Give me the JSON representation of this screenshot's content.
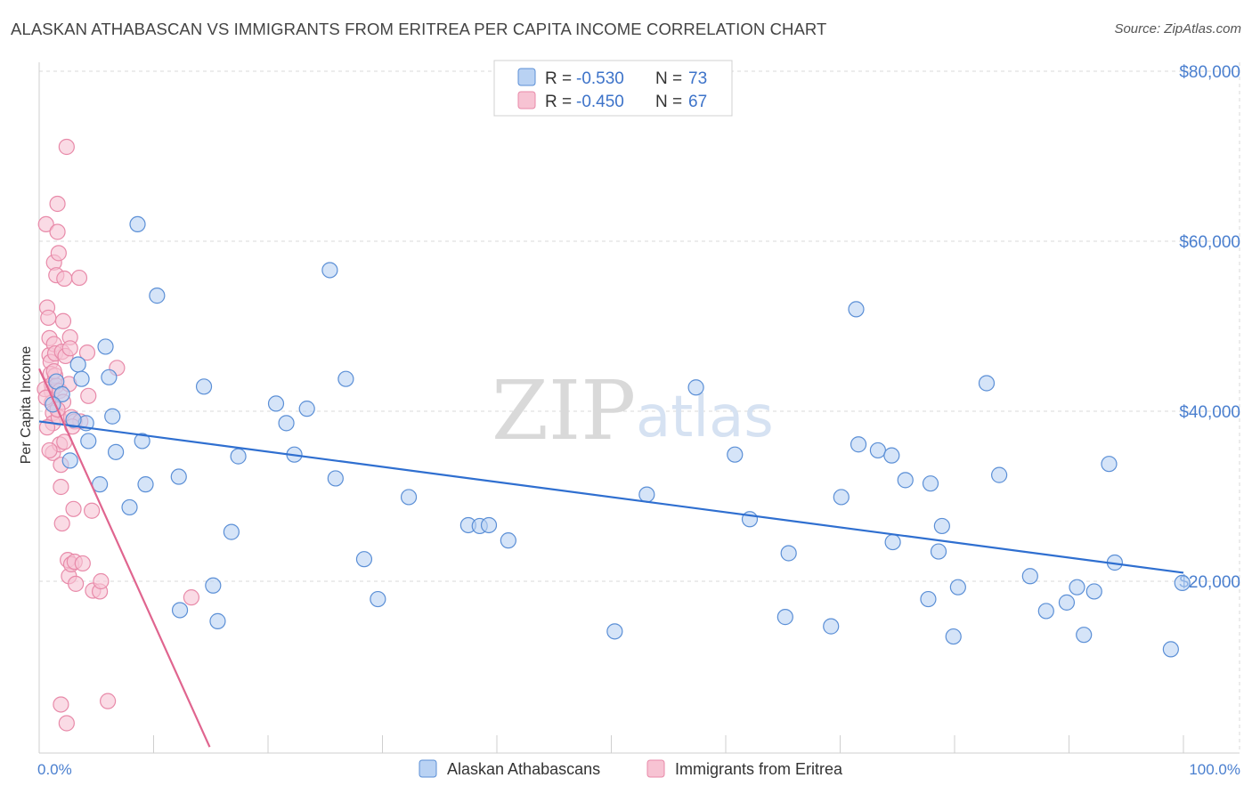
{
  "title": "ALASKAN ATHABASCAN VS IMMIGRANTS FROM ERITREA PER CAPITA INCOME CORRELATION CHART",
  "source": "Source: ZipAtlas.com",
  "watermark": {
    "zip": "ZIP",
    "atlas": "atlas"
  },
  "colors": {
    "blue_fill": "#b9d2f3",
    "blue_stroke": "#5b8fd6",
    "blue_line": "#2f6fd0",
    "pink_fill": "#f7c3d3",
    "pink_stroke": "#e88aa9",
    "pink_line": "#e0658f",
    "grid": "#d8d8d8",
    "tick_text": "#4a7fcf"
  },
  "legend": {
    "rows": [
      {
        "r_label": "R =",
        "r_value": "-0.530",
        "n_label": "N =",
        "n_value": "73",
        "series": "blue"
      },
      {
        "r_label": "R =",
        "r_value": "-0.450",
        "n_label": "N =",
        "n_value": "67",
        "series": "pink"
      }
    ]
  },
  "bottom_legend": [
    {
      "label": "Alaskan Athabascans",
      "series": "blue"
    },
    {
      "label": "Immigrants from Eritrea",
      "series": "pink"
    }
  ],
  "chart_data": {
    "type": "scatter",
    "title": "ALASKAN ATHABASCAN VS IMMIGRANTS FROM ERITREA PER CAPITA INCOME CORRELATION CHART",
    "xlabel": "",
    "ylabel": "Per Capita Income",
    "xlim": [
      0,
      100
    ],
    "ylim": [
      0,
      80000
    ],
    "x_tick_labels": [
      {
        "value": 0,
        "label": "0.0%"
      },
      {
        "value": 100,
        "label": "100.0%"
      }
    ],
    "y_tick_labels": [
      {
        "value": 20000,
        "label": "$20,000"
      },
      {
        "value": 40000,
        "label": "$40,000"
      },
      {
        "value": 60000,
        "label": "$60,000"
      },
      {
        "value": 80000,
        "label": "$80,000"
      }
    ],
    "series": [
      {
        "name": "Alaskan Athabascans",
        "color": "blue",
        "trend": {
          "x": [
            0,
            100
          ],
          "y": [
            38800,
            21000
          ]
        },
        "points": [
          [
            1.5,
            43500
          ],
          [
            2.7,
            34200
          ],
          [
            3.4,
            45500
          ],
          [
            3.7,
            43800
          ],
          [
            4.1,
            38600
          ],
          [
            4.3,
            36500
          ],
          [
            5.3,
            31400
          ],
          [
            5.8,
            47600
          ],
          [
            6.1,
            44000
          ],
          [
            6.4,
            39400
          ],
          [
            6.7,
            35200
          ],
          [
            7.9,
            28700
          ],
          [
            8.6,
            62000
          ],
          [
            9.0,
            36500
          ],
          [
            9.3,
            31400
          ],
          [
            10.3,
            53600
          ],
          [
            12.2,
            32300
          ],
          [
            12.3,
            16600
          ],
          [
            14.4,
            42900
          ],
          [
            15.2,
            19500
          ],
          [
            15.6,
            15300
          ],
          [
            16.8,
            25800
          ],
          [
            17.4,
            34700
          ],
          [
            20.7,
            40900
          ],
          [
            21.6,
            38600
          ],
          [
            22.3,
            34900
          ],
          [
            23.4,
            40300
          ],
          [
            25.4,
            56600
          ],
          [
            25.9,
            32100
          ],
          [
            26.8,
            43800
          ],
          [
            28.4,
            22600
          ],
          [
            29.6,
            17900
          ],
          [
            32.3,
            29900
          ],
          [
            37.5,
            26600
          ],
          [
            38.5,
            26500
          ],
          [
            39.3,
            26600
          ],
          [
            41.0,
            24800
          ],
          [
            50.3,
            14100
          ],
          [
            53.1,
            30200
          ],
          [
            57.4,
            42800
          ],
          [
            60.8,
            34900
          ],
          [
            62.1,
            27300
          ],
          [
            65.5,
            23300
          ],
          [
            65.2,
            15800
          ],
          [
            69.2,
            14700
          ],
          [
            70.1,
            29900
          ],
          [
            71.4,
            52000
          ],
          [
            71.6,
            36100
          ],
          [
            73.3,
            35400
          ],
          [
            74.5,
            34800
          ],
          [
            74.6,
            24600
          ],
          [
            75.7,
            31900
          ],
          [
            77.7,
            17900
          ],
          [
            77.9,
            31500
          ],
          [
            78.6,
            23500
          ],
          [
            78.9,
            26500
          ],
          [
            79.9,
            13500
          ],
          [
            80.3,
            19300
          ],
          [
            82.8,
            43300
          ],
          [
            83.9,
            32500
          ],
          [
            86.6,
            20600
          ],
          [
            88.0,
            16500
          ],
          [
            89.8,
            17500
          ],
          [
            90.7,
            19300
          ],
          [
            91.3,
            13700
          ],
          [
            92.2,
            18800
          ],
          [
            93.5,
            33800
          ],
          [
            94.0,
            22200
          ],
          [
            98.9,
            12000
          ],
          [
            99.9,
            19800
          ],
          [
            2.0,
            42000
          ],
          [
            1.2,
            40800
          ],
          [
            3.0,
            39000
          ]
        ]
      },
      {
        "name": "Immigrants from Eritrea",
        "color": "pink",
        "trend": {
          "x": [
            0,
            14.9
          ],
          "y": [
            45000,
            500
          ]
        },
        "points": [
          [
            0.6,
            62000
          ],
          [
            0.7,
            52200
          ],
          [
            0.8,
            51000
          ],
          [
            0.9,
            48600
          ],
          [
            0.9,
            46600
          ],
          [
            1.0,
            45800
          ],
          [
            1.0,
            44400
          ],
          [
            1.1,
            43100
          ],
          [
            1.1,
            42300
          ],
          [
            1.1,
            41000
          ],
          [
            1.2,
            39800
          ],
          [
            1.2,
            38600
          ],
          [
            1.2,
            35100
          ],
          [
            1.3,
            57500
          ],
          [
            1.3,
            47900
          ],
          [
            1.4,
            46800
          ],
          [
            1.4,
            44200
          ],
          [
            1.5,
            56000
          ],
          [
            1.5,
            43000
          ],
          [
            1.6,
            64400
          ],
          [
            1.6,
            61100
          ],
          [
            1.7,
            58600
          ],
          [
            1.7,
            39300
          ],
          [
            1.8,
            42400
          ],
          [
            1.8,
            36100
          ],
          [
            1.9,
            33700
          ],
          [
            1.9,
            31100
          ],
          [
            1.9,
            5500
          ],
          [
            2.0,
            47000
          ],
          [
            2.0,
            26800
          ],
          [
            2.1,
            50600
          ],
          [
            2.1,
            41100
          ],
          [
            2.2,
            55600
          ],
          [
            2.2,
            36400
          ],
          [
            2.3,
            46500
          ],
          [
            2.4,
            71100
          ],
          [
            2.4,
            3300
          ],
          [
            2.5,
            22500
          ],
          [
            2.6,
            20600
          ],
          [
            2.6,
            43200
          ],
          [
            2.7,
            48700
          ],
          [
            2.7,
            47400
          ],
          [
            2.8,
            39300
          ],
          [
            2.8,
            22000
          ],
          [
            3.0,
            28500
          ],
          [
            3.1,
            38800
          ],
          [
            3.1,
            22300
          ],
          [
            3.2,
            19700
          ],
          [
            3.5,
            55700
          ],
          [
            3.6,
            38800
          ],
          [
            3.8,
            22100
          ],
          [
            4.2,
            46900
          ],
          [
            4.3,
            41800
          ],
          [
            4.6,
            28300
          ],
          [
            4.7,
            18900
          ],
          [
            5.3,
            18800
          ],
          [
            5.4,
            20000
          ],
          [
            6.0,
            5900
          ],
          [
            6.8,
            45100
          ],
          [
            13.3,
            18100
          ],
          [
            0.5,
            42600
          ],
          [
            0.6,
            41600
          ],
          [
            0.7,
            38100
          ],
          [
            0.9,
            35400
          ],
          [
            1.3,
            44700
          ],
          [
            1.6,
            40200
          ],
          [
            2.9,
            38200
          ]
        ]
      }
    ]
  }
}
